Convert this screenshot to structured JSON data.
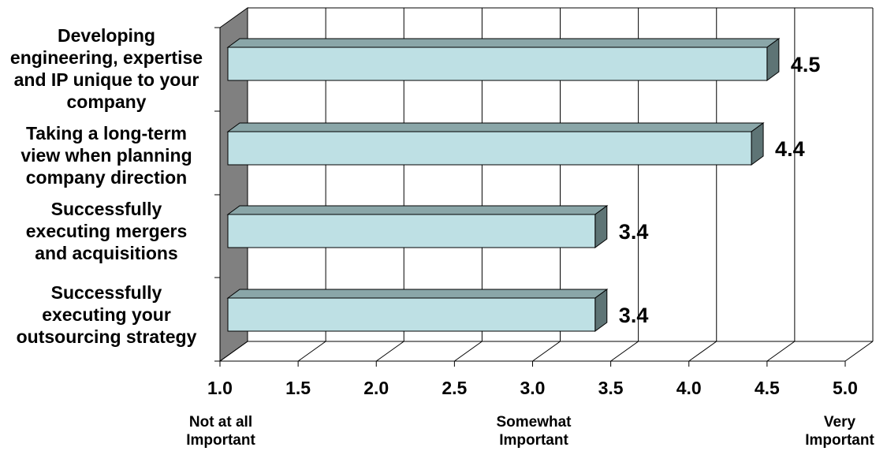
{
  "chart_data": {
    "type": "bar",
    "orientation": "horizontal",
    "three_d": true,
    "categories": [
      [
        "Developing",
        "engineering, expertise",
        "and IP unique to your",
        "company"
      ],
      [
        "Taking a long-term",
        "view when planning",
        "company direction"
      ],
      [
        "Successfully",
        "executing mergers",
        "and acquisitions"
      ],
      [
        "Successfully",
        "executing your",
        "outsourcing strategy"
      ]
    ],
    "values": [
      4.5,
      4.4,
      3.4,
      3.4
    ],
    "value_labels": [
      "4.5",
      "4.4",
      "3.4",
      "3.4"
    ],
    "xlim": [
      1.0,
      5.0
    ],
    "xticks": [
      "1.0",
      "1.5",
      "2.0",
      "2.5",
      "3.0",
      "3.5",
      "4.0",
      "4.5",
      "5.0"
    ],
    "grid": "vertical",
    "legend": "none",
    "scale_anchors": [
      {
        "at": 1.0,
        "lines": [
          "Not at all",
          "Important"
        ]
      },
      {
        "at": 3.0,
        "lines": [
          "Somewhat",
          "Important"
        ]
      },
      {
        "at": 5.0,
        "lines": [
          "Very",
          "Important"
        ]
      }
    ],
    "colors": {
      "bar_front": "#BEE0E4",
      "bar_top": "#8AA6A8",
      "bar_side": "#5E7475",
      "left_wall": "#808080",
      "gridline": "#000000"
    }
  }
}
